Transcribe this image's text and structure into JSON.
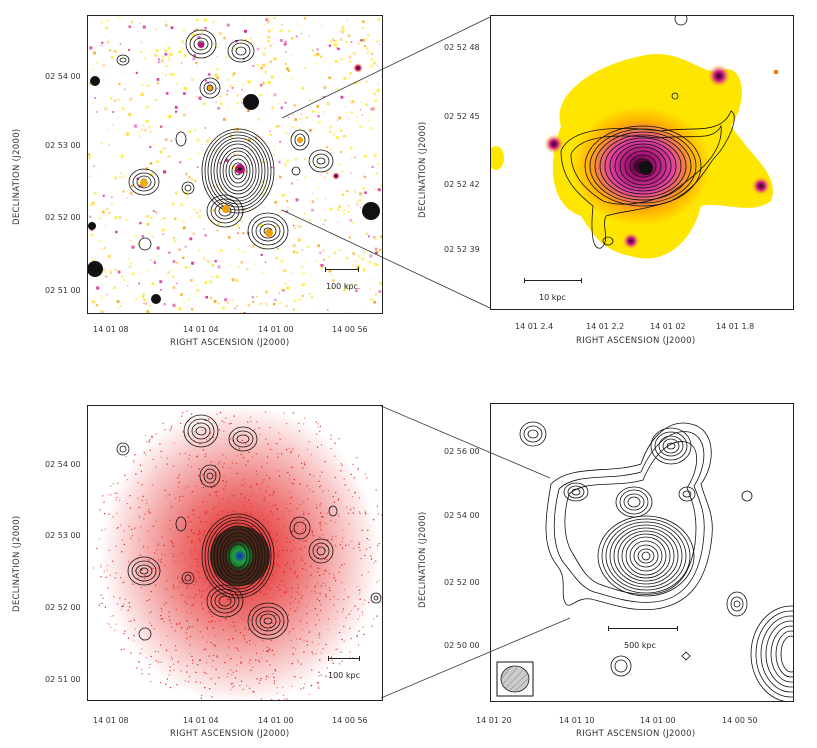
{
  "axis_labels": {
    "ra": "RIGHT ASCENSION  (J2000)",
    "dec": "DECLINATION  (J2000)"
  },
  "panels": {
    "top_left": {
      "yticks": [
        "02 54 00",
        "02 53 00",
        "02 52 00",
        "02 51 00"
      ],
      "xticks": [
        "14 01 08",
        "14 01 04",
        "14 01 00",
        "14 00 56"
      ],
      "scale_label": "100 kpc"
    },
    "top_right": {
      "yticks": [
        "02 52 48",
        "02 52 45",
        "02 52 42",
        "02 52 39"
      ],
      "xticks": [
        "14 01 2.4",
        "14 01 2.2",
        "14 01 02",
        "14 01 1.8"
      ],
      "scale_label": "10 kpc"
    },
    "bottom_left": {
      "yticks": [
        "02 54 00",
        "02 53 00",
        "02 52 00",
        "02 51 00"
      ],
      "xticks": [
        "14 01 08",
        "14 01 04",
        "14 01 00",
        "14 00 56"
      ],
      "scale_label": "100 kpc"
    },
    "bottom_right": {
      "yticks": [
        "02 56 00",
        "02 54 00",
        "02 52 00",
        "02 50 00"
      ],
      "xticks": [
        "14 01 20",
        "14 01 10",
        "14 01 00",
        "14 00 50"
      ],
      "scale_label": "500 kpc"
    }
  },
  "colors": {
    "optical_yellow": "#ffe600",
    "optical_magenta": "#d0188c",
    "xray_red": "#e01010",
    "contour": "#111111"
  }
}
